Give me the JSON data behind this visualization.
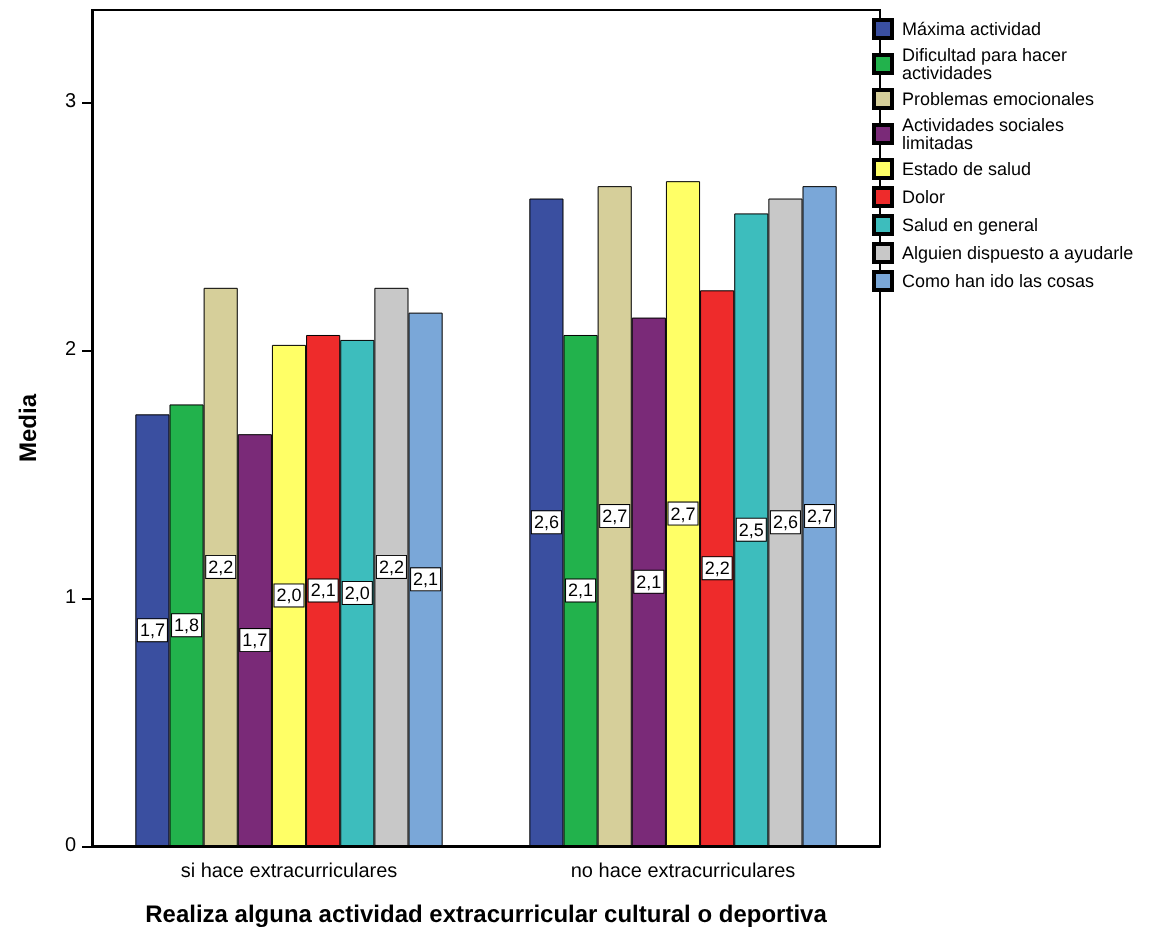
{
  "chart_data": {
    "type": "bar",
    "xlabel": "Realiza alguna actividad extracurricular cultural o deportiva",
    "ylabel": "Media",
    "categories": [
      "si hace extracurriculares",
      "no hace extracurriculares"
    ],
    "ylim": [
      0,
      3.37
    ],
    "yticks": [
      0,
      1,
      2,
      3
    ],
    "grid": false,
    "legend": "top right",
    "series": [
      {
        "name": "Máxima actividad",
        "color": "#3a4fa0",
        "values": [
          1.74,
          2.61
        ],
        "value_labels": [
          "1,7",
          "2,6"
        ]
      },
      {
        "name": "Dificultad para hacer actividades",
        "color": "#22b24c",
        "values": [
          1.78,
          2.06
        ],
        "value_labels": [
          "1,8",
          "2,1"
        ]
      },
      {
        "name": "Problemas emocionales",
        "color": "#d6cf9a",
        "values": [
          2.25,
          2.66
        ],
        "value_labels": [
          "2,2",
          "2,7"
        ]
      },
      {
        "name": "Actividades sociales limitadas",
        "color": "#7a2a78",
        "values": [
          1.66,
          2.13
        ],
        "value_labels": [
          "1,7",
          "2,1"
        ]
      },
      {
        "name": "Estado de salud",
        "color": "#ffff66",
        "values": [
          2.02,
          2.68
        ],
        "value_labels": [
          "2,0",
          "2,7"
        ]
      },
      {
        "name": "Dolor",
        "color": "#ee2b2b",
        "values": [
          2.06,
          2.24
        ],
        "value_labels": [
          "2,1",
          "2,2"
        ]
      },
      {
        "name": "Salud en general",
        "color": "#3dbdbd",
        "values": [
          2.04,
          2.55
        ],
        "value_labels": [
          "2,0",
          "2,5"
        ]
      },
      {
        "name": "Alguien dispuesto a ayudarle",
        "color": "#c8c8c8",
        "values": [
          2.25,
          2.61
        ],
        "value_labels": [
          "2,2",
          "2,6"
        ]
      },
      {
        "name": "Como han ido las cosas",
        "color": "#7aa7d8",
        "values": [
          2.15,
          2.66
        ],
        "value_labels": [
          "2,1",
          "2,7"
        ]
      }
    ]
  }
}
